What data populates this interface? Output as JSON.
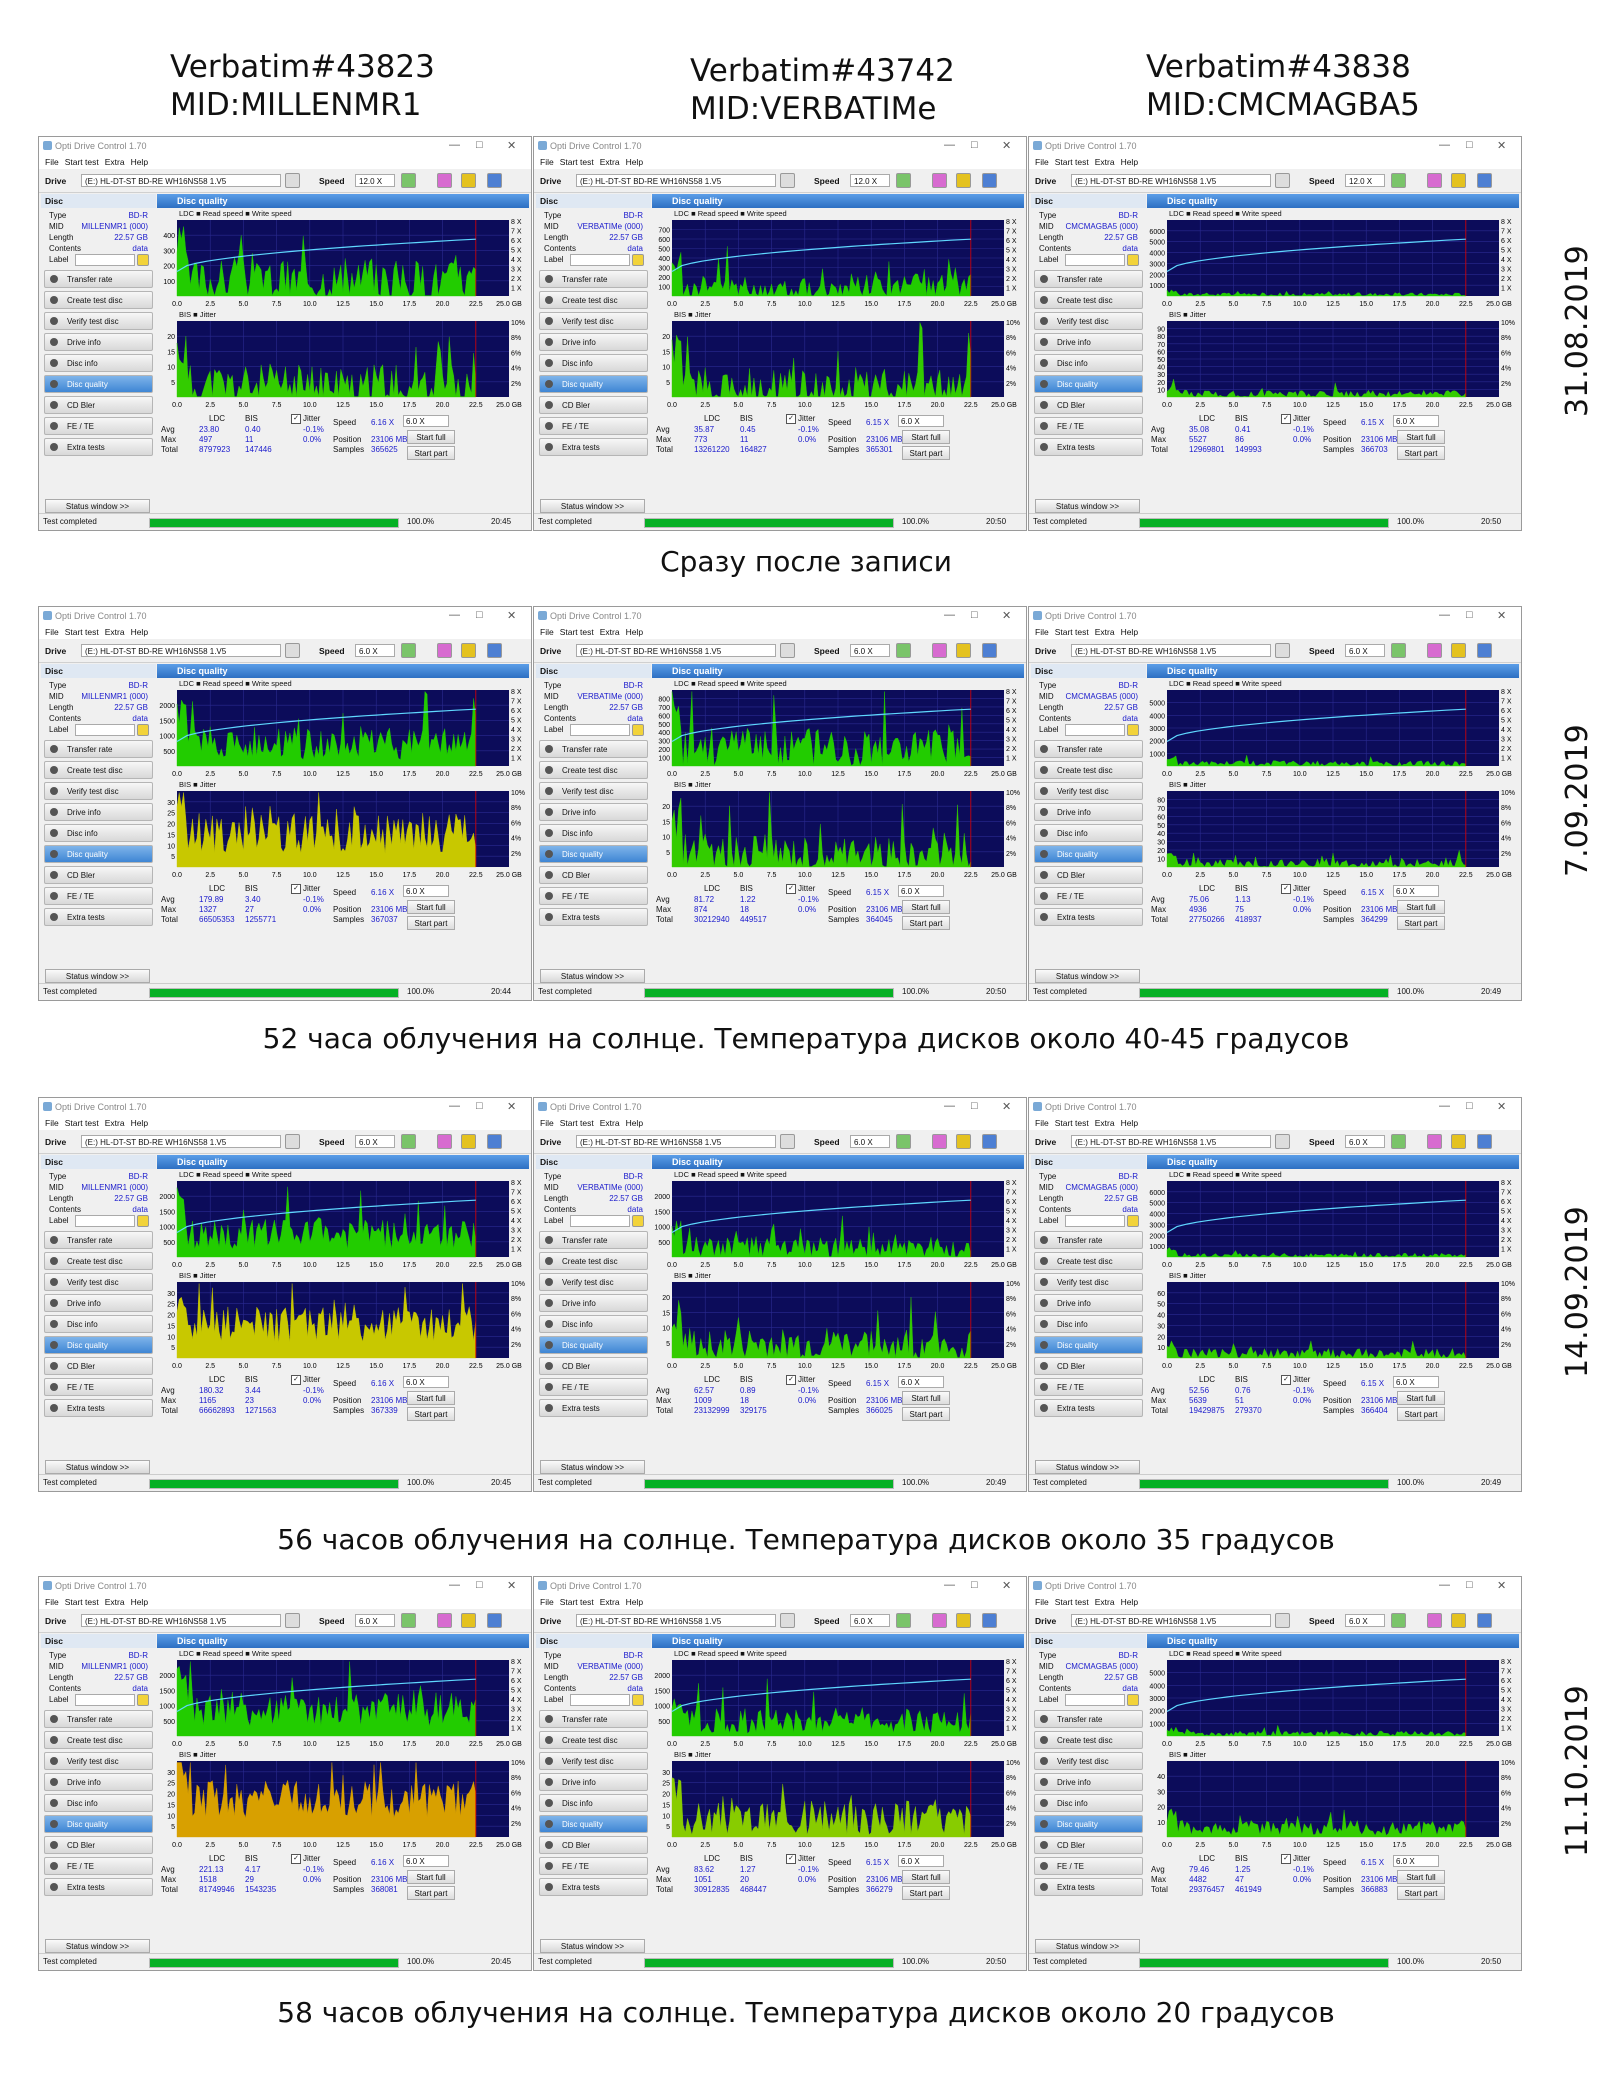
{
  "columns": [
    {
      "model": "Verbatim#43823",
      "mid": "MID:MILLENMR1"
    },
    {
      "model": "Verbatim#43742",
      "mid": "MID:VERBATIMe"
    },
    {
      "model": "Verbatim#43838",
      "mid": "MID:CMCMAGBA5"
    }
  ],
  "app": {
    "title": "Opti Drive Control 1.70",
    "menu": [
      "File",
      "Start test",
      "Extra",
      "Help"
    ],
    "drive_label": "Drive",
    "drive": "(E:)  HL-DT-ST BD-RE  WH16NS58 1.V5",
    "speed_label": "Speed",
    "disc_label": "Disc",
    "panel_title": "Disc quality",
    "legend_top": "LDC ■ Read speed ■ Write speed",
    "legend_bottom": "BIS ■ Jitter",
    "info_labels": [
      "Type",
      "MID",
      "Length",
      "Contents",
      "Label"
    ],
    "nav": [
      "Transfer rate",
      "Create test disc",
      "Verify test disc",
      "Drive info",
      "Disc info",
      "Disc quality",
      "CD Bler",
      "FE / TE",
      "Extra tests"
    ],
    "status_window": "Status window >>",
    "status_text": "Test completed",
    "stat_headers": [
      "LDC",
      "BIS"
    ],
    "stat_rows": [
      "Avg",
      "Max",
      "Total"
    ],
    "jitter_label": "Jitter",
    "speed_stat_label": "Speed",
    "position_label": "Position",
    "samples_label": "Samples",
    "start_full": "Start full",
    "start_part": "Start part",
    "x_ticks": [
      "0.0",
      "2.5",
      "5.0",
      "7.5",
      "10.0",
      "12.5",
      "15.0",
      "17.5",
      "20.0",
      "22.5",
      "25.0 GB"
    ],
    "speed_ticks": [
      "8 X",
      "7 X",
      "6 X",
      "5 X",
      "4 X",
      "3 X",
      "2 X",
      "1 X"
    ],
    "jitter_ticks": [
      "10%",
      "8%",
      "6%",
      "4%",
      "2%"
    ]
  },
  "rows": [
    {
      "date": "31.08.2019",
      "caption": "Сразу после записи",
      "windows": [
        {
          "type": "BD-R",
          "mid": "MILLENMR1 (000)",
          "length": "22.57 GB",
          "contents": "data",
          "speed_sel": "12.0 X",
          "ldc_y": [
            "400",
            "300",
            "200",
            "100"
          ],
          "bis_y": [
            "20",
            "15",
            "10",
            "5"
          ],
          "ldc_avg": "23.80",
          "ldc_max": "497",
          "ldc_total": "8797923",
          "bis_avg": "0.40",
          "bis_max": "11",
          "bis_total": "147446",
          "jit_avg": "-0.1%",
          "jit_max": "0.0%",
          "speed": "6.16 X",
          "speed_opt": "6.0 X",
          "position": "23106 MB",
          "samples": "365625",
          "progress_text": "100.0%",
          "progress": 1.0,
          "time": "20:45",
          "ldc_level": 0.22,
          "ldc_noise": 0.55,
          "bis_level": 0.14,
          "bis_noise": 0.6,
          "bis_color": "#33cc00"
        },
        {
          "type": "BD-R",
          "mid": "VERBATIMe (000)",
          "length": "22.57 GB",
          "contents": "data",
          "speed_sel": "12.0 X",
          "ldc_y": [
            "700",
            "600",
            "500",
            "400",
            "300",
            "200",
            "100"
          ],
          "bis_y": [
            "20",
            "15",
            "10",
            "5"
          ],
          "ldc_avg": "35.87",
          "ldc_max": "773",
          "ldc_total": "13261220",
          "bis_avg": "0.45",
          "bis_max": "11",
          "bis_total": "164827",
          "jit_avg": "-0.1%",
          "jit_max": "0.0%",
          "speed": "6.15 X",
          "speed_opt": "6.0 X",
          "position": "23106 MB",
          "samples": "365301",
          "progress_text": "100.0%",
          "progress": 1.0,
          "time": "20:50",
          "ldc_level": 0.12,
          "ldc_noise": 0.35,
          "bis_level": 0.12,
          "bis_noise": 0.55,
          "bis_color": "#33cc00"
        },
        {
          "type": "BD-R",
          "mid": "CMCMAGBA5 (000)",
          "length": "22.57 GB",
          "contents": "data",
          "speed_sel": "12.0 X",
          "ldc_y": [
            "6000",
            "5000",
            "4000",
            "3000",
            "2000",
            "1000"
          ],
          "bis_y": [
            "90",
            "80",
            "70",
            "60",
            "50",
            "40",
            "30",
            "20",
            "10"
          ],
          "ldc_avg": "35.08",
          "ldc_max": "5527",
          "ldc_total": "12969801",
          "bis_avg": "0.41",
          "bis_max": "86",
          "bis_total": "149993",
          "jit_avg": "-0.1%",
          "jit_max": "0.0%",
          "speed": "6.15 X",
          "speed_opt": "6.0 X",
          "position": "23106 MB",
          "samples": "366703",
          "progress_text": "100.0%",
          "progress": 1.0,
          "time": "20:50",
          "ldc_level": 0.02,
          "ldc_noise": 0.05,
          "bis_level": 0.04,
          "bis_noise": 0.1,
          "bis_color": "#33cc00"
        }
      ]
    },
    {
      "date": "7.09.2019",
      "caption": "52 часа облучения на солнце. Температура дисков около 40-45 градусов",
      "windows": [
        {
          "type": "BD-R",
          "mid": "MILLENMR1 (000)",
          "length": "22.57 GB",
          "contents": "data",
          "speed_sel": "6.0 X",
          "ldc_y": [
            "2000",
            "1500",
            "1000",
            "500"
          ],
          "bis_y": [
            "30",
            "25",
            "20",
            "15",
            "10",
            "5"
          ],
          "ldc_avg": "179.89",
          "ldc_max": "1327",
          "ldc_total": "66505353",
          "bis_avg": "3.40",
          "bis_max": "27",
          "bis_total": "1255771",
          "jit_avg": "-0.1%",
          "jit_max": "0.0%",
          "speed": "6.16 X",
          "speed_opt": "6.0 X",
          "position": "23106 MB",
          "samples": "367037",
          "progress_text": "100.0%",
          "progress": 1.0,
          "time": "20:44",
          "ldc_level": 0.3,
          "ldc_noise": 0.45,
          "bis_level": 0.45,
          "bis_noise": 0.55,
          "bis_color": "#c8c800"
        },
        {
          "type": "BD-R",
          "mid": "VERBATIMe (000)",
          "length": "22.57 GB",
          "contents": "data",
          "speed_sel": "6.0 X",
          "ldc_y": [
            "800",
            "700",
            "600",
            "500",
            "400",
            "300",
            "200",
            "100"
          ],
          "bis_y": [
            "20",
            "15",
            "10",
            "5"
          ],
          "ldc_avg": "81.72",
          "ldc_max": "874",
          "ldc_total": "30212940",
          "bis_avg": "1.22",
          "bis_max": "18",
          "bis_total": "449517",
          "jit_avg": "-0.1%",
          "jit_max": "0.0%",
          "speed": "6.15 X",
          "speed_opt": "6.0 X",
          "position": "23106 MB",
          "samples": "364045",
          "progress_text": "100.0%",
          "progress": 1.0,
          "time": "20:50",
          "ldc_level": 0.25,
          "ldc_noise": 0.55,
          "bis_level": 0.2,
          "bis_noise": 0.5,
          "bis_color": "#33cc00"
        },
        {
          "type": "BD-R",
          "mid": "CMCMAGBA5 (000)",
          "length": "22.57 GB",
          "contents": "data",
          "speed_sel": "6.0 X",
          "ldc_y": [
            "5000",
            "4000",
            "3000",
            "2000",
            "1000"
          ],
          "bis_y": [
            "80",
            "70",
            "60",
            "50",
            "40",
            "30",
            "20",
            "10"
          ],
          "ldc_avg": "75.06",
          "ldc_max": "4936",
          "ldc_total": "27750266",
          "bis_avg": "1.13",
          "bis_max": "75",
          "bis_total": "418937",
          "jit_avg": "-0.1%",
          "jit_max": "0.0%",
          "speed": "6.15 X",
          "speed_opt": "6.0 X",
          "position": "23106 MB",
          "samples": "364299",
          "progress_text": "100.0%",
          "progress": 1.0,
          "time": "20:49",
          "ldc_level": 0.03,
          "ldc_noise": 0.08,
          "bis_level": 0.05,
          "bis_noise": 0.12,
          "bis_color": "#33cc00"
        }
      ]
    },
    {
      "date": "14.09.2019",
      "caption": "56 часов облучения на солнце. Температура дисков около 35 градусов",
      "windows": [
        {
          "type": "BD-R",
          "mid": "MILLENMR1 (000)",
          "length": "22.57 GB",
          "contents": "data",
          "speed_sel": "6.0 X",
          "ldc_y": [
            "2000",
            "1500",
            "1000",
            "500"
          ],
          "bis_y": [
            "30",
            "25",
            "20",
            "15",
            "10",
            "5"
          ],
          "ldc_avg": "180.32",
          "ldc_max": "1165",
          "ldc_total": "66662893",
          "bis_avg": "3.44",
          "bis_max": "23",
          "bis_total": "1271563",
          "jit_avg": "-0.1%",
          "jit_max": "0.0%",
          "speed": "6.16 X",
          "speed_opt": "6.0 X",
          "position": "23106 MB",
          "samples": "367339",
          "progress_text": "100.0%",
          "progress": 1.0,
          "time": "20:45",
          "ldc_level": 0.3,
          "ldc_noise": 0.4,
          "bis_level": 0.45,
          "bis_noise": 0.5,
          "bis_color": "#c8c800"
        },
        {
          "type": "BD-R",
          "mid": "VERBATIMe (000)",
          "length": "22.57 GB",
          "contents": "data",
          "speed_sel": "6.0 X",
          "ldc_y": [
            "2000",
            "1500",
            "1000",
            "500"
          ],
          "bis_y": [
            "20",
            "15",
            "10",
            "5"
          ],
          "ldc_avg": "62.57",
          "ldc_max": "1009",
          "ldc_total": "23132999",
          "bis_avg": "0.89",
          "bis_max": "18",
          "bis_total": "329175",
          "jit_avg": "-0.1%",
          "jit_max": "0.0%",
          "speed": "6.15 X",
          "speed_opt": "6.0 X",
          "position": "23106 MB",
          "samples": "366025",
          "progress_text": "100.0%",
          "progress": 1.0,
          "time": "20:49",
          "ldc_level": 0.12,
          "ldc_noise": 0.3,
          "bis_level": 0.17,
          "bis_noise": 0.45,
          "bis_color": "#33cc00"
        },
        {
          "type": "BD-R",
          "mid": "CMCMAGBA5 (000)",
          "length": "22.57 GB",
          "contents": "data",
          "speed_sel": "6.0 X",
          "ldc_y": [
            "6000",
            "5000",
            "4000",
            "3000",
            "2000",
            "1000"
          ],
          "bis_y": [
            "60",
            "50",
            "40",
            "30",
            "20",
            "10"
          ],
          "ldc_avg": "52.56",
          "ldc_max": "5639",
          "ldc_total": "19429875",
          "bis_avg": "0.76",
          "bis_max": "51",
          "bis_total": "279370",
          "jit_avg": "-0.1%",
          "jit_max": "0.0%",
          "speed": "6.15 X",
          "speed_opt": "6.0 X",
          "position": "23106 MB",
          "samples": "366404",
          "progress_text": "100.0%",
          "progress": 1.0,
          "time": "20:49",
          "ldc_level": 0.02,
          "ldc_noise": 0.06,
          "bis_level": 0.05,
          "bis_noise": 0.15,
          "bis_color": "#33cc00"
        }
      ]
    },
    {
      "date": "11.10.2019",
      "caption": "58 часов облучения на солнце. Температура дисков около 20 градусов",
      "windows": [
        {
          "type": "BD-R",
          "mid": "MILLENMR1 (000)",
          "length": "22.57 GB",
          "contents": "data",
          "speed_sel": "6.0 X",
          "ldc_y": [
            "2000",
            "1500",
            "1000",
            "500"
          ],
          "bis_y": [
            "30",
            "25",
            "20",
            "15",
            "10",
            "5"
          ],
          "ldc_avg": "221.13",
          "ldc_max": "1518",
          "ldc_total": "81749946",
          "bis_avg": "4.17",
          "bis_max": "29",
          "bis_total": "1543235",
          "jit_avg": "-0.1%",
          "jit_max": "0.0%",
          "speed": "6.16 X",
          "speed_opt": "6.0 X",
          "position": "23106 MB",
          "samples": "368081",
          "progress_text": "100.0%",
          "progress": 1.0,
          "time": "20:45",
          "ldc_level": 0.35,
          "ldc_noise": 0.45,
          "bis_level": 0.5,
          "bis_noise": 0.5,
          "bis_color": "#d8a000"
        },
        {
          "type": "BD-R",
          "mid": "VERBATIMe (000)",
          "length": "22.57 GB",
          "contents": "data",
          "speed_sel": "6.0 X",
          "ldc_y": [
            "2000",
            "1500",
            "1000",
            "500"
          ],
          "bis_y": [
            "30",
            "25",
            "20",
            "15",
            "10",
            "5"
          ],
          "ldc_avg": "83.62",
          "ldc_max": "1051",
          "ldc_total": "30912835",
          "bis_avg": "1.27",
          "bis_max": "20",
          "bis_total": "468447",
          "jit_avg": "-0.1%",
          "jit_max": "0.0%",
          "speed": "6.15 X",
          "speed_opt": "6.0 X",
          "position": "23106 MB",
          "samples": "366279",
          "progress_text": "100.0%",
          "progress": 1.0,
          "time": "20:50",
          "ldc_level": 0.2,
          "ldc_noise": 0.35,
          "bis_level": 0.25,
          "bis_noise": 0.45,
          "bis_color": "#88cc00"
        },
        {
          "type": "BD-R",
          "mid": "CMCMAGBA5 (000)",
          "length": "22.57 GB",
          "contents": "data",
          "speed_sel": "6.0 X",
          "ldc_y": [
            "5000",
            "4000",
            "3000",
            "2000",
            "1000"
          ],
          "bis_y": [
            "40",
            "30",
            "20",
            "10"
          ],
          "ldc_avg": "79.46",
          "ldc_max": "4482",
          "ldc_total": "29376457",
          "bis_avg": "1.25",
          "bis_max": "47",
          "bis_total": "461949",
          "jit_avg": "-0.1%",
          "jit_max": "0.0%",
          "speed": "6.15 X",
          "speed_opt": "6.0 X",
          "position": "23106 MB",
          "samples": "366883",
          "progress_text": "100.0%",
          "progress": 1.0,
          "time": "20:50",
          "ldc_level": 0.03,
          "ldc_noise": 0.07,
          "bis_level": 0.12,
          "bis_noise": 0.2,
          "bis_color": "#33cc00"
        }
      ]
    }
  ]
}
